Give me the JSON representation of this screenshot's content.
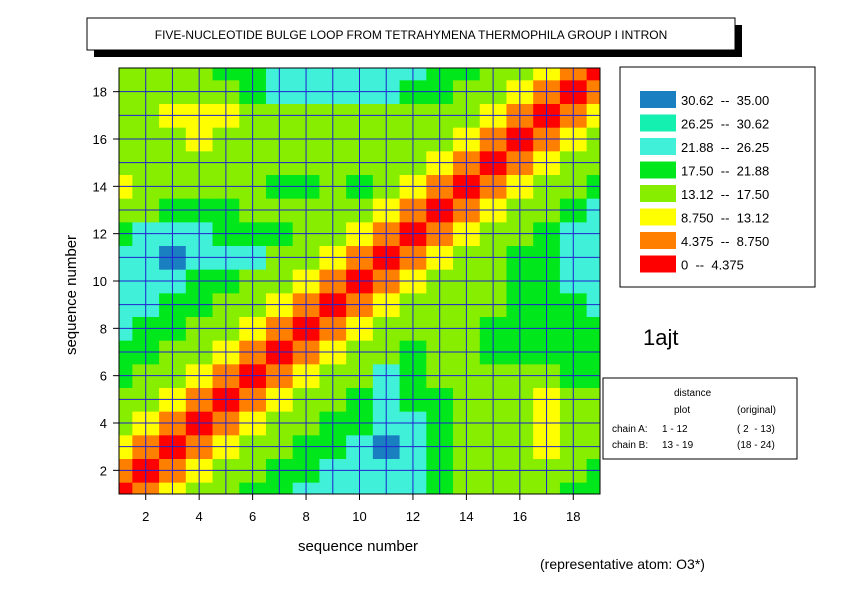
{
  "chart_data": {
    "type": "contour",
    "title": "FIVE-NUCLEOTIDE BULGE LOOP FROM TETRAHYMENA THERMOPHILA GROUP I INTRON",
    "xlabel": "sequence number",
    "ylabel": "sequence number",
    "x": [
      1,
      2,
      3,
      4,
      5,
      6,
      7,
      8,
      9,
      10,
      11,
      12,
      13,
      14,
      15,
      16,
      17,
      18,
      19
    ],
    "y": [
      1,
      2,
      3,
      4,
      5,
      6,
      7,
      8,
      9,
      10,
      11,
      12,
      13,
      14,
      15,
      16,
      17,
      18,
      19
    ],
    "z": [
      [
        0,
        5.5,
        10,
        14,
        17,
        19.5,
        21,
        22.5,
        23,
        23,
        23,
        23,
        18,
        17,
        16,
        16,
        17,
        18,
        18
      ],
      [
        5.5,
        0,
        5.5,
        10,
        14,
        17,
        19.5,
        21,
        22.5,
        23,
        24,
        23,
        18,
        17,
        16,
        15,
        16,
        17,
        18
      ],
      [
        10,
        5.5,
        0,
        5.5,
        10,
        14,
        17,
        19.5,
        21,
        22.5,
        31,
        23,
        19,
        17,
        16,
        14,
        13,
        15,
        17
      ],
      [
        14,
        10,
        5.5,
        0,
        5.5,
        10,
        14,
        17,
        19.5,
        21,
        23,
        22,
        19,
        17,
        15,
        14,
        12,
        14,
        16
      ],
      [
        17,
        14,
        10,
        5.5,
        0,
        5.5,
        10,
        14,
        17,
        19.5,
        22,
        21,
        18,
        17,
        16,
        15,
        13,
        15,
        17
      ],
      [
        19.5,
        17,
        14,
        10,
        5.5,
        0,
        5.5,
        10,
        14,
        17,
        24,
        20,
        17,
        17,
        17,
        17,
        16,
        18,
        19
      ],
      [
        21,
        19.5,
        17,
        14,
        10,
        5.5,
        0,
        5.5,
        10,
        14,
        17,
        19,
        17,
        17,
        18,
        18,
        18,
        19,
        20
      ],
      [
        22.5,
        21,
        19.5,
        17,
        14,
        10,
        5.5,
        0,
        5.5,
        10,
        14,
        17,
        16,
        17,
        18,
        19,
        19,
        20,
        21
      ],
      [
        23,
        22.5,
        21,
        19.5,
        17,
        14,
        10,
        5.5,
        0,
        5.5,
        10,
        14,
        15,
        16,
        17,
        19,
        20,
        21,
        22
      ],
      [
        23,
        23,
        22.5,
        21,
        19.5,
        17,
        14,
        10,
        5.5,
        0,
        5.5,
        10,
        14,
        17,
        17,
        19,
        21,
        22,
        23
      ],
      [
        23,
        24,
        31,
        23,
        22,
        24,
        17,
        14,
        10,
        5.5,
        0,
        5.5,
        10,
        14,
        17,
        18,
        21,
        23,
        24
      ],
      [
        20,
        22,
        23,
        22,
        21,
        20,
        19,
        17,
        14,
        10,
        5.5,
        0,
        5.5,
        10,
        14,
        17,
        19,
        22,
        23
      ],
      [
        16,
        17,
        18,
        18,
        18,
        17,
        16,
        16,
        15,
        14,
        10,
        5.5,
        0,
        5.5,
        10,
        14,
        17,
        19,
        22
      ],
      [
        12,
        15,
        16,
        16,
        16,
        17,
        18,
        18,
        17,
        19,
        14,
        10,
        5.5,
        0,
        5.5,
        10,
        14,
        17,
        19.5
      ],
      [
        14,
        15,
        15,
        14,
        15,
        16,
        17,
        17,
        16,
        16,
        15,
        14,
        10,
        5.5,
        0,
        5.5,
        10,
        14,
        17
      ],
      [
        16,
        15,
        14,
        12,
        14,
        16,
        17,
        16,
        16,
        17,
        17,
        16,
        14,
        10,
        5.5,
        0,
        5.5,
        10,
        14
      ],
      [
        16,
        15,
        13,
        11,
        13,
        16,
        17,
        17,
        16,
        16,
        17,
        17,
        16,
        14,
        10,
        5.5,
        0,
        5.5,
        10
      ],
      [
        16,
        16,
        15,
        14,
        16,
        19,
        22,
        23,
        22,
        23,
        24,
        21,
        19,
        17,
        14,
        10,
        5.5,
        0,
        5.5
      ],
      [
        17,
        17,
        17,
        17,
        19,
        21,
        23,
        23,
        22,
        23,
        23,
        23,
        21,
        19,
        17,
        14,
        10,
        5.5,
        0
      ]
    ],
    "xlim": [
      1,
      19
    ],
    "ylim": [
      1,
      19
    ],
    "xticks": [
      2,
      4,
      6,
      8,
      10,
      12,
      14,
      16,
      18
    ],
    "yticks": [
      2,
      4,
      6,
      8,
      10,
      12,
      14,
      16,
      18
    ],
    "grid": true,
    "grid_color": "#2020d0",
    "legend": [
      {
        "label": "30.62  --  35.00",
        "color": "#1a7fc0",
        "min": 30.62,
        "max": 35
      },
      {
        "label": "26.25  --  30.62",
        "color": "#14f0b0",
        "min": 26.25,
        "max": 30.62
      },
      {
        "label": "21.88  --  26.25",
        "color": "#40f0d8",
        "min": 21.88,
        "max": 26.25
      },
      {
        "label": "17.50  --  21.88",
        "color": "#00e81c",
        "min": 17.5,
        "max": 21.88
      },
      {
        "label": "13.12  --  17.50",
        "color": "#88ee00",
        "min": 13.12,
        "max": 17.5
      },
      {
        "label": "8.750  --  13.12",
        "color": "#ffff00",
        "min": 8.75,
        "max": 13.12
      },
      {
        "label": "4.375  --  8.750",
        "color": "#ff8000",
        "min": 4.375,
        "max": 8.75
      },
      {
        "label": "0  --  4.375",
        "color": "#ff0000",
        "min": 0,
        "max": 4.375
      }
    ],
    "id_label": "1ajt",
    "info": {
      "heading": "distance",
      "col1": "plot",
      "col2": "(original)",
      "rows": [
        [
          "chain A:",
          "1 - 12",
          "( 2  - 13)"
        ],
        [
          "chain B:",
          "13 - 19",
          "(18 - 24)"
        ]
      ]
    },
    "note": "(representative atom: O3*)"
  }
}
